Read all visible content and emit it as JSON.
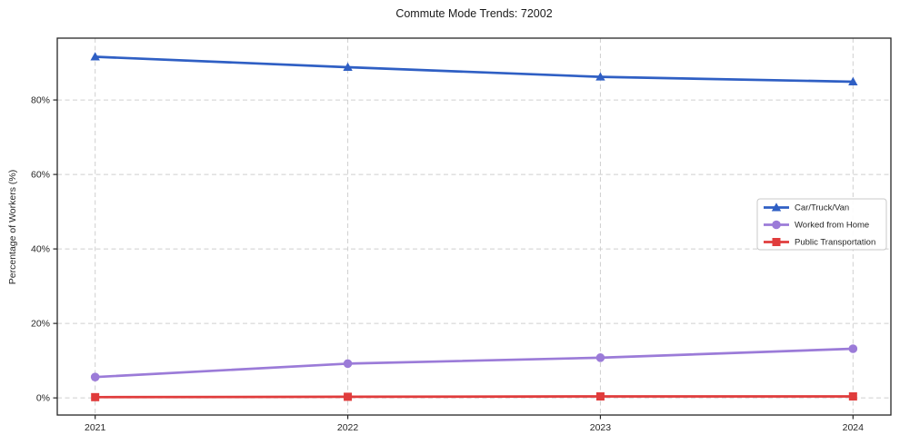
{
  "title": "Commute Mode Trends: 72002",
  "chart_data": {
    "type": "line",
    "title": "Commute Mode Trends: 72002",
    "xlabel": "",
    "ylabel": "Percentage of Workers (%)",
    "x": [
      2021,
      2022,
      2023,
      2024
    ],
    "x_tick_labels": [
      "2021",
      "2022",
      "2023",
      "2024"
    ],
    "y_ticks": [
      0,
      20,
      40,
      60,
      80
    ],
    "y_tick_labels": [
      "0%",
      "20%",
      "40%",
      "60%",
      "80%"
    ],
    "xlim": [
      2020.85,
      2024.15
    ],
    "ylim": [
      -4.6,
      96.6
    ],
    "grid": true,
    "grid_style": "dashed",
    "grid_color": "#cfcfcf",
    "axis_color": "#262626",
    "background_color": "#ffffff",
    "legend_position": "center-right",
    "series": [
      {
        "name": "Car/Truck/Van",
        "color": "#2f5fc4",
        "marker": "triangle",
        "values": [
          91.6,
          88.8,
          86.2,
          84.9
        ]
      },
      {
        "name": "Worked from Home",
        "color": "#9b7bd8",
        "marker": "circle",
        "values": [
          5.6,
          9.2,
          10.8,
          13.2
        ]
      },
      {
        "name": "Public Transportation",
        "color": "#e03c3c",
        "marker": "square",
        "values": [
          0.2,
          0.3,
          0.4,
          0.4
        ]
      }
    ]
  }
}
